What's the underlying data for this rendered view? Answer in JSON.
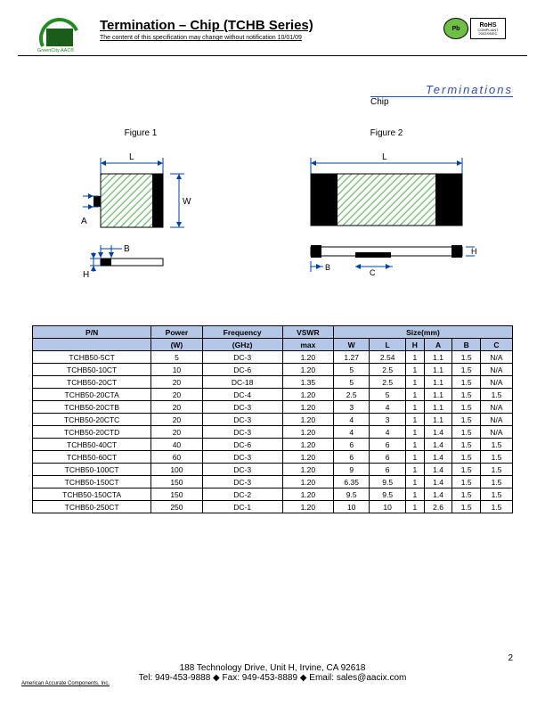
{
  "header": {
    "logo_text": "GreenCity AAC®",
    "title": "Termination – Chip (TCHB Series)",
    "subtitle": "The content of this specification may change without notification 10/01/09",
    "badge_pb": "Pb",
    "badge_rohs_line1": "RoHS",
    "badge_rohs_line2": "COMPLIANT",
    "badge_rohs_line3": "2002/95/EC"
  },
  "section": {
    "label": "Terminations",
    "sub": "Chip"
  },
  "figures": {
    "fig1": "Figure 1",
    "fig2": "Figure 2",
    "hatch_color": "#6db96d",
    "outline_color": "#0040a0",
    "dim_color": "#0040a0"
  },
  "table": {
    "headers_row1": [
      "P/N",
      "Power",
      "Frequency",
      "VSWR",
      "Size(mm)"
    ],
    "headers_row2": [
      "",
      "(W)",
      "(GHz)",
      "max",
      "W",
      "L",
      "H",
      "A",
      "B",
      "C"
    ],
    "rows": [
      [
        "TCHB50-5CT",
        "5",
        "DC-3",
        "1.20",
        "1.27",
        "2.54",
        "1",
        "1.1",
        "1.5",
        "N/A"
      ],
      [
        "TCHB50-10CT",
        "10",
        "DC-6",
        "1.20",
        "5",
        "2.5",
        "1",
        "1.1",
        "1.5",
        "N/A"
      ],
      [
        "TCHB50-20CT",
        "20",
        "DC-18",
        "1.35",
        "5",
        "2.5",
        "1",
        "1.1",
        "1.5",
        "N/A"
      ],
      [
        "TCHB50-20CTA",
        "20",
        "DC-4",
        "1.20",
        "2.5",
        "5",
        "1",
        "1.1",
        "1.5",
        "1.5"
      ],
      [
        "TCHB50-20CTB",
        "20",
        "DC-3",
        "1.20",
        "3",
        "4",
        "1",
        "1.1",
        "1.5",
        "N/A"
      ],
      [
        "TCHB50-20CTC",
        "20",
        "DC-3",
        "1.20",
        "4",
        "3",
        "1",
        "1.1",
        "1.5",
        "N/A"
      ],
      [
        "TCHB50-20CTD",
        "20",
        "DC-3",
        "1.20",
        "4",
        "4",
        "1",
        "1.4",
        "1.5",
        "N/A"
      ],
      [
        "TCHB50-40CT",
        "40",
        "DC-6",
        "1.20",
        "6",
        "6",
        "1",
        "1.4",
        "1.5",
        "1.5"
      ],
      [
        "TCHB50-60CT",
        "60",
        "DC-3",
        "1.20",
        "6",
        "6",
        "1",
        "1.4",
        "1.5",
        "1.5"
      ],
      [
        "TCHB50-100CT",
        "100",
        "DC-3",
        "1.20",
        "9",
        "6",
        "1",
        "1.4",
        "1.5",
        "1.5"
      ],
      [
        "TCHB50-150CT",
        "150",
        "DC-3",
        "1.20",
        "6.35",
        "9.5",
        "1",
        "1.4",
        "1.5",
        "1.5"
      ],
      [
        "TCHB50-150CTA",
        "150",
        "DC-2",
        "1.20",
        "9.5",
        "9.5",
        "1",
        "1.4",
        "1.5",
        "1.5"
      ],
      [
        "TCHB50-250CT",
        "250",
        "DC-1",
        "1.20",
        "10",
        "10",
        "1",
        "2.6",
        "1.5",
        "1.5"
      ]
    ]
  },
  "footer": {
    "address": "188 Technology Drive, Unit H, Irvine, CA 92618",
    "contact": "Tel: 949-453-9888 ◆ Fax: 949-453-8889 ◆ Email: sales@aacix.com",
    "company": "American Accurate Components, Inc.",
    "page": "2"
  }
}
